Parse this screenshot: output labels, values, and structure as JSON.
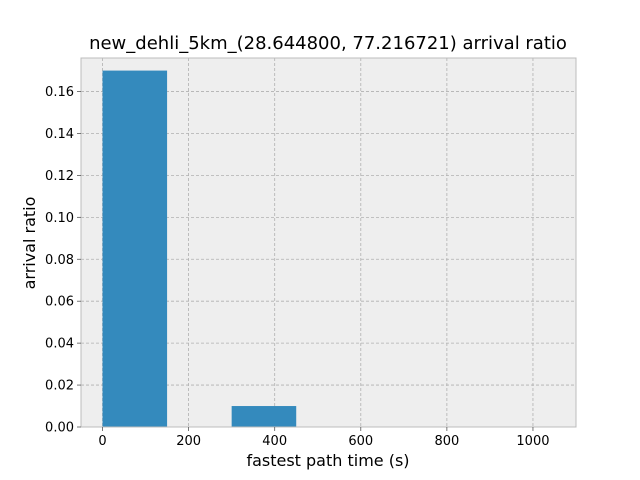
{
  "chart_data": {
    "type": "bar",
    "title": "new_dehli_5km_(28.644800, 77.216721) arrival ratio",
    "xlabel": "fastest path time (s)",
    "ylabel": "arrival ratio",
    "xlim": [
      -50,
      1100
    ],
    "ylim": [
      0,
      0.176
    ],
    "xticks": [
      0,
      200,
      400,
      600,
      800,
      1000
    ],
    "yticks": [
      0.0,
      0.02,
      0.04,
      0.06,
      0.08,
      0.1,
      0.12,
      0.14,
      0.16
    ],
    "xtick_labels": [
      "0",
      "200",
      "400",
      "600",
      "800",
      "1000"
    ],
    "ytick_labels": [
      "0.00",
      "0.02",
      "0.04",
      "0.06",
      "0.08",
      "0.10",
      "0.12",
      "0.14",
      "0.16"
    ],
    "bins": [
      {
        "x0": 0,
        "x1": 150,
        "value": 0.17
      },
      {
        "x0": 300,
        "x1": 450,
        "value": 0.01
      }
    ],
    "grid": true,
    "colors": {
      "bar": "#348abd",
      "plot_background": "#eeeeee",
      "grid": "#b0b0b0",
      "frame": "#bcbcbc"
    }
  }
}
